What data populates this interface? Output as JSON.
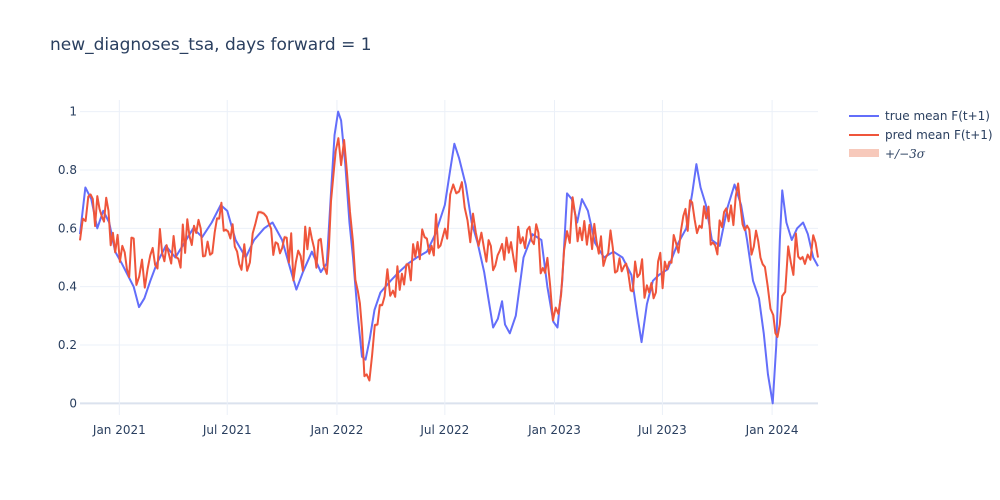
{
  "chart_data": {
    "type": "line",
    "title": "new_diagnoses_tsa, days forward = 1",
    "xlabel": "",
    "ylabel": "",
    "xlim": [
      "2020-10-27",
      "2024-03-18"
    ],
    "ylim": [
      -0.04,
      1.04
    ],
    "xticks": [
      {
        "date": "2021-01-01",
        "label": "Jan 2021"
      },
      {
        "date": "2021-07-01",
        "label": "Jul 2021"
      },
      {
        "date": "2022-01-01",
        "label": "Jan 2022"
      },
      {
        "date": "2022-07-01",
        "label": "Jul 2022"
      },
      {
        "date": "2023-01-01",
        "label": "Jan 2023"
      },
      {
        "date": "2023-07-01",
        "label": "Jul 2023"
      },
      {
        "date": "2024-01-01",
        "label": "Jan 2024"
      }
    ],
    "yticks": [
      0,
      0.2,
      0.4,
      0.6,
      0.8,
      1
    ],
    "ytick_labels": [
      "0",
      "0.2",
      "0.4",
      "0.6",
      "0.8",
      "1"
    ],
    "grid": true,
    "legend_position": "top-right",
    "colors": {
      "true_mean": "#636efa",
      "pred_mean": "#ef553b",
      "band": "#f7c9bb",
      "grid": "#ebf0f8",
      "text": "#2a3f5f"
    },
    "series": [
      {
        "name": "true mean F(t+1)",
        "points": [
          [
            "2020-10-27",
            0.58
          ],
          [
            "2020-11-05",
            0.74
          ],
          [
            "2020-11-15",
            0.7
          ],
          [
            "2020-11-25",
            0.6
          ],
          [
            "2020-12-05",
            0.66
          ],
          [
            "2020-12-15",
            0.62
          ],
          [
            "2020-12-25",
            0.52
          ],
          [
            "2021-01-05",
            0.48
          ],
          [
            "2021-01-15",
            0.44
          ],
          [
            "2021-01-25",
            0.4
          ],
          [
            "2021-02-03",
            0.33
          ],
          [
            "2021-02-12",
            0.36
          ],
          [
            "2021-02-22",
            0.42
          ],
          [
            "2021-03-05",
            0.48
          ],
          [
            "2021-03-20",
            0.54
          ],
          [
            "2021-04-05",
            0.5
          ],
          [
            "2021-04-20",
            0.55
          ],
          [
            "2021-05-05",
            0.6
          ],
          [
            "2021-05-20",
            0.57
          ],
          [
            "2021-06-05",
            0.62
          ],
          [
            "2021-06-20",
            0.68
          ],
          [
            "2021-07-01",
            0.66
          ],
          [
            "2021-07-15",
            0.56
          ],
          [
            "2021-08-01",
            0.5
          ],
          [
            "2021-08-15",
            0.56
          ],
          [
            "2021-09-01",
            0.6
          ],
          [
            "2021-09-15",
            0.62
          ],
          [
            "2021-10-01",
            0.56
          ],
          [
            "2021-10-15",
            0.46
          ],
          [
            "2021-10-25",
            0.39
          ],
          [
            "2021-11-05",
            0.45
          ],
          [
            "2021-11-20",
            0.52
          ],
          [
            "2021-12-05",
            0.45
          ],
          [
            "2021-12-15",
            0.48
          ],
          [
            "2021-12-22",
            0.72
          ],
          [
            "2021-12-28",
            0.92
          ],
          [
            "2022-01-03",
            1.0
          ],
          [
            "2022-01-08",
            0.97
          ],
          [
            "2022-01-15",
            0.82
          ],
          [
            "2022-01-22",
            0.62
          ],
          [
            "2022-01-28",
            0.5
          ],
          [
            "2022-02-05",
            0.3
          ],
          [
            "2022-02-12",
            0.16
          ],
          [
            "2022-02-18",
            0.15
          ],
          [
            "2022-02-25",
            0.22
          ],
          [
            "2022-03-05",
            0.32
          ],
          [
            "2022-03-15",
            0.38
          ],
          [
            "2022-04-01",
            0.42
          ],
          [
            "2022-04-15",
            0.45
          ],
          [
            "2022-05-01",
            0.48
          ],
          [
            "2022-05-15",
            0.5
          ],
          [
            "2022-06-01",
            0.52
          ],
          [
            "2022-06-15",
            0.58
          ],
          [
            "2022-07-01",
            0.68
          ],
          [
            "2022-07-10",
            0.8
          ],
          [
            "2022-07-17",
            0.89
          ],
          [
            "2022-07-25",
            0.84
          ],
          [
            "2022-08-05",
            0.75
          ],
          [
            "2022-08-15",
            0.62
          ],
          [
            "2022-08-25",
            0.55
          ],
          [
            "2022-09-05",
            0.45
          ],
          [
            "2022-09-12",
            0.36
          ],
          [
            "2022-09-20",
            0.26
          ],
          [
            "2022-09-28",
            0.29
          ],
          [
            "2022-10-05",
            0.35
          ],
          [
            "2022-10-10",
            0.27
          ],
          [
            "2022-10-18",
            0.24
          ],
          [
            "2022-10-28",
            0.3
          ],
          [
            "2022-11-10",
            0.5
          ],
          [
            "2022-11-25",
            0.58
          ],
          [
            "2022-12-10",
            0.56
          ],
          [
            "2022-12-20",
            0.4
          ],
          [
            "2022-12-30",
            0.28
          ],
          [
            "2023-01-06",
            0.26
          ],
          [
            "2023-01-14",
            0.42
          ],
          [
            "2023-01-22",
            0.72
          ],
          [
            "2023-01-30",
            0.7
          ],
          [
            "2023-02-08",
            0.62
          ],
          [
            "2023-02-16",
            0.7
          ],
          [
            "2023-02-26",
            0.66
          ],
          [
            "2023-03-10",
            0.55
          ],
          [
            "2023-03-25",
            0.5
          ],
          [
            "2023-04-10",
            0.52
          ],
          [
            "2023-04-25",
            0.5
          ],
          [
            "2023-05-10",
            0.44
          ],
          [
            "2023-05-20",
            0.3
          ],
          [
            "2023-05-27",
            0.21
          ],
          [
            "2023-06-05",
            0.34
          ],
          [
            "2023-06-15",
            0.42
          ],
          [
            "2023-06-25",
            0.44
          ],
          [
            "2023-07-10",
            0.46
          ],
          [
            "2023-07-25",
            0.54
          ],
          [
            "2023-08-10",
            0.6
          ],
          [
            "2023-08-20",
            0.72
          ],
          [
            "2023-08-27",
            0.82
          ],
          [
            "2023-09-03",
            0.74
          ],
          [
            "2023-09-12",
            0.68
          ],
          [
            "2023-09-22",
            0.56
          ],
          [
            "2023-10-05",
            0.54
          ],
          [
            "2023-10-18",
            0.67
          ],
          [
            "2023-10-30",
            0.75
          ],
          [
            "2023-11-10",
            0.68
          ],
          [
            "2023-11-20",
            0.56
          ],
          [
            "2023-11-30",
            0.42
          ],
          [
            "2023-12-10",
            0.36
          ],
          [
            "2023-12-18",
            0.24
          ],
          [
            "2023-12-25",
            0.1
          ],
          [
            "2024-01-02",
            0.0
          ],
          [
            "2024-01-08",
            0.2
          ],
          [
            "2024-01-14",
            0.56
          ],
          [
            "2024-01-18",
            0.73
          ],
          [
            "2024-01-25",
            0.62
          ],
          [
            "2024-02-03",
            0.56
          ],
          [
            "2024-02-12",
            0.6
          ],
          [
            "2024-02-22",
            0.62
          ],
          [
            "2024-03-01",
            0.58
          ],
          [
            "2024-03-10",
            0.5
          ],
          [
            "2024-03-18",
            0.47
          ]
        ]
      },
      {
        "name": "pred mean F(t+1)",
        "points": [
          [
            "2020-10-27",
            0.56
          ],
          [
            "2020-11-10",
            0.75
          ],
          [
            "2020-11-25",
            0.65
          ],
          [
            "2020-12-10",
            0.66
          ],
          [
            "2020-12-25",
            0.56
          ],
          [
            "2021-01-10",
            0.52
          ],
          [
            "2021-01-25",
            0.49
          ],
          [
            "2021-02-08",
            0.42
          ],
          [
            "2021-02-22",
            0.5
          ],
          [
            "2021-03-10",
            0.52
          ],
          [
            "2021-03-25",
            0.54
          ],
          [
            "2021-04-10",
            0.52
          ],
          [
            "2021-04-25",
            0.57
          ],
          [
            "2021-05-10",
            0.6
          ],
          [
            "2021-05-25",
            0.55
          ],
          [
            "2021-06-10",
            0.6
          ],
          [
            "2021-06-25",
            0.62
          ],
          [
            "2021-07-10",
            0.56
          ],
          [
            "2021-07-25",
            0.5
          ],
          [
            "2021-08-08",
            0.52
          ],
          [
            "2021-08-22",
            0.58
          ],
          [
            "2021-09-05",
            0.6
          ],
          [
            "2021-09-20",
            0.58
          ],
          [
            "2021-10-05",
            0.54
          ],
          [
            "2021-10-20",
            0.5
          ],
          [
            "2021-11-05",
            0.52
          ],
          [
            "2021-11-20",
            0.55
          ],
          [
            "2021-12-05",
            0.5
          ],
          [
            "2021-12-15",
            0.52
          ],
          [
            "2021-12-22",
            0.66
          ],
          [
            "2021-12-30",
            0.84
          ],
          [
            "2022-01-08",
            0.86
          ],
          [
            "2022-01-18",
            0.84
          ],
          [
            "2022-01-28",
            0.62
          ],
          [
            "2022-02-05",
            0.38
          ],
          [
            "2022-02-12",
            0.2
          ],
          [
            "2022-02-20",
            0.1
          ],
          [
            "2022-03-01",
            0.2
          ],
          [
            "2022-03-10",
            0.34
          ],
          [
            "2022-03-22",
            0.4
          ],
          [
            "2022-04-05",
            0.44
          ],
          [
            "2022-04-20",
            0.46
          ],
          [
            "2022-05-05",
            0.5
          ],
          [
            "2022-05-20",
            0.52
          ],
          [
            "2022-06-05",
            0.55
          ],
          [
            "2022-06-20",
            0.6
          ],
          [
            "2022-07-05",
            0.64
          ],
          [
            "2022-07-15",
            0.76
          ],
          [
            "2022-07-25",
            0.72
          ],
          [
            "2022-08-08",
            0.64
          ],
          [
            "2022-08-22",
            0.56
          ],
          [
            "2022-09-05",
            0.5
          ],
          [
            "2022-09-20",
            0.47
          ],
          [
            "2022-10-05",
            0.48
          ],
          [
            "2022-10-20",
            0.5
          ],
          [
            "2022-11-05",
            0.54
          ],
          [
            "2022-11-20",
            0.56
          ],
          [
            "2022-12-05",
            0.55
          ],
          [
            "2022-12-20",
            0.42
          ],
          [
            "2023-01-03",
            0.3
          ],
          [
            "2023-01-12",
            0.42
          ],
          [
            "2023-01-22",
            0.62
          ],
          [
            "2023-02-05",
            0.64
          ],
          [
            "2023-02-20",
            0.6
          ],
          [
            "2023-03-05",
            0.56
          ],
          [
            "2023-03-20",
            0.52
          ],
          [
            "2023-04-05",
            0.53
          ],
          [
            "2023-04-20",
            0.5
          ],
          [
            "2023-05-05",
            0.47
          ],
          [
            "2023-05-20",
            0.44
          ],
          [
            "2023-06-05",
            0.42
          ],
          [
            "2023-06-20",
            0.44
          ],
          [
            "2023-07-05",
            0.48
          ],
          [
            "2023-07-20",
            0.54
          ],
          [
            "2023-08-05",
            0.58
          ],
          [
            "2023-08-20",
            0.64
          ],
          [
            "2023-09-05",
            0.66
          ],
          [
            "2023-09-20",
            0.58
          ],
          [
            "2023-10-05",
            0.56
          ],
          [
            "2023-10-20",
            0.66
          ],
          [
            "2023-11-05",
            0.68
          ],
          [
            "2023-11-20",
            0.6
          ],
          [
            "2023-12-05",
            0.54
          ],
          [
            "2023-12-20",
            0.45
          ],
          [
            "2024-01-03",
            0.36
          ],
          [
            "2024-01-10",
            0.16
          ],
          [
            "2024-01-18",
            0.3
          ],
          [
            "2024-01-28",
            0.48
          ],
          [
            "2024-02-10",
            0.52
          ],
          [
            "2024-02-25",
            0.55
          ],
          [
            "2024-03-10",
            0.5
          ],
          [
            "2024-03-18",
            0.5
          ]
        ]
      }
    ],
    "band": {
      "name": "+/-3σ",
      "legend_label": "+/−3σ",
      "around": "pred mean F(t+1)"
    }
  }
}
